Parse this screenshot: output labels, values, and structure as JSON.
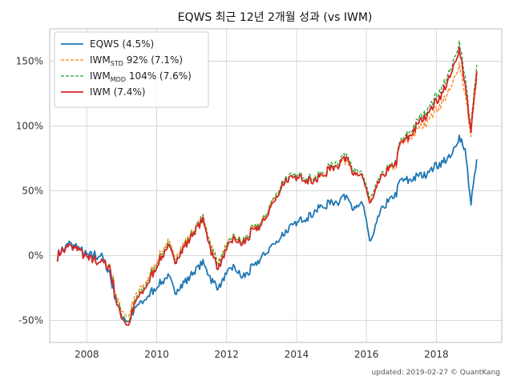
{
  "chart_data": {
    "type": "line",
    "title": "EQWS 최근 12년 2개월 성과 (vs IWM)",
    "xlabel": "",
    "ylabel": "",
    "x_ticks": [
      "2008",
      "2010",
      "2012",
      "2014",
      "2016",
      "2018"
    ],
    "y_ticks": [
      "-50%",
      "0%",
      "50%",
      "100%",
      "150%"
    ],
    "xlim": [
      "2006-12-10",
      "2019-11-15"
    ],
    "ylim": [
      -67,
      175
    ],
    "grid": true,
    "legend_position": "top-left",
    "series": [
      {
        "name": "EQWS (4.5%)",
        "color": "#1f77b4",
        "style": "solid",
        "x": [
          "2007-03-01",
          "2007-07-01",
          "2007-10-01",
          "2008-01-01",
          "2008-06-01",
          "2008-09-01",
          "2008-11-20",
          "2009-03-09",
          "2009-06-01",
          "2009-10-01",
          "2010-04-23",
          "2010-07-02",
          "2010-10-01",
          "2011-04-29",
          "2011-08-08",
          "2011-10-03",
          "2012-03-01",
          "2012-06-01",
          "2012-10-01",
          "2013-01-02",
          "2013-05-01",
          "2013-09-01",
          "2014-03-01",
          "2014-08-01",
          "2014-12-01",
          "2015-03-01",
          "2015-06-23",
          "2015-08-24",
          "2015-12-01",
          "2016-02-11",
          "2016-06-01",
          "2016-11-08",
          "2016-12-15",
          "2017-04-01",
          "2017-08-01",
          "2017-12-01",
          "2018-03-01",
          "2018-06-01",
          "2018-08-31",
          "2018-10-29",
          "2018-12-24",
          "2019-02-27"
        ],
        "values": [
          0,
          10,
          6,
          0,
          0,
          -15,
          -40,
          -52,
          -40,
          -32,
          -15,
          -28,
          -22,
          -5,
          -20,
          -25,
          -8,
          -17,
          -10,
          -2,
          8,
          18,
          28,
          35,
          40,
          42,
          48,
          35,
          40,
          8,
          35,
          48,
          58,
          58,
          62,
          68,
          72,
          75,
          92,
          82,
          40,
          72
        ]
      },
      {
        "name": "IWMSTD 92% (7.1%)",
        "color": "#ff7f0e",
        "style": "dashed",
        "x": [
          "2007-03-01",
          "2007-07-01",
          "2007-10-01",
          "2008-01-01",
          "2008-06-01",
          "2008-09-01",
          "2008-11-20",
          "2009-03-09",
          "2009-06-01",
          "2009-10-01",
          "2010-04-23",
          "2010-07-02",
          "2010-10-01",
          "2011-04-29",
          "2011-08-08",
          "2011-10-03",
          "2012-03-01",
          "2012-06-01",
          "2012-10-01",
          "2013-01-02",
          "2013-05-01",
          "2013-09-01",
          "2014-03-01",
          "2014-08-01",
          "2014-12-01",
          "2015-03-01",
          "2015-06-23",
          "2015-08-24",
          "2015-12-01",
          "2016-02-11",
          "2016-06-01",
          "2016-11-08",
          "2016-12-15",
          "2017-04-01",
          "2017-08-01",
          "2017-12-01",
          "2018-03-01",
          "2018-06-01",
          "2018-08-31",
          "2018-10-29",
          "2018-12-24",
          "2019-02-27"
        ],
        "values": [
          0,
          8,
          5,
          -2,
          -5,
          -8,
          -35,
          -48,
          -30,
          -18,
          12,
          -2,
          8,
          30,
          5,
          -5,
          15,
          10,
          20,
          25,
          42,
          58,
          60,
          58,
          65,
          70,
          75,
          62,
          60,
          40,
          60,
          70,
          85,
          90,
          100,
          110,
          118,
          128,
          148,
          125,
          92,
          135
        ]
      },
      {
        "name": "IWMMDD 104% (7.6%)",
        "color": "#2ca02c",
        "style": "dashed",
        "x": [
          "2007-03-01",
          "2007-07-01",
          "2007-10-01",
          "2008-01-01",
          "2008-06-01",
          "2008-09-01",
          "2008-11-20",
          "2009-03-09",
          "2009-06-01",
          "2009-10-01",
          "2010-04-23",
          "2010-07-02",
          "2010-10-01",
          "2011-04-29",
          "2011-08-08",
          "2011-10-03",
          "2012-03-01",
          "2012-06-01",
          "2012-10-01",
          "2013-01-02",
          "2013-05-01",
          "2013-09-01",
          "2014-03-01",
          "2014-08-01",
          "2014-12-01",
          "2015-03-01",
          "2015-06-23",
          "2015-08-24",
          "2015-12-01",
          "2016-02-11",
          "2016-06-01",
          "2016-11-08",
          "2016-12-15",
          "2017-04-01",
          "2017-08-01",
          "2017-12-01",
          "2018-03-01",
          "2018-06-01",
          "2018-08-31",
          "2018-10-29",
          "2018-12-24",
          "2019-02-27"
        ],
        "values": [
          0,
          8,
          5,
          -2,
          -5,
          -9,
          -37,
          -52,
          -33,
          -20,
          10,
          -4,
          6,
          30,
          3,
          -7,
          15,
          10,
          20,
          25,
          43,
          60,
          62,
          60,
          68,
          73,
          80,
          65,
          62,
          42,
          62,
          73,
          88,
          95,
          108,
          120,
          130,
          142,
          165,
          138,
          98,
          145
        ]
      },
      {
        "name": "IWM (7.4%)",
        "color": "#d62728",
        "style": "solid",
        "x": [
          "2007-03-01",
          "2007-07-01",
          "2007-10-01",
          "2008-01-01",
          "2008-06-01",
          "2008-09-01",
          "2008-11-20",
          "2009-03-09",
          "2009-06-01",
          "2009-10-01",
          "2010-04-23",
          "2010-07-02",
          "2010-10-01",
          "2011-04-29",
          "2011-08-08",
          "2011-10-03",
          "2012-03-01",
          "2012-06-01",
          "2012-10-01",
          "2013-01-02",
          "2013-05-01",
          "2013-09-01",
          "2014-03-01",
          "2014-08-01",
          "2014-12-01",
          "2015-03-01",
          "2015-06-23",
          "2015-08-24",
          "2015-12-01",
          "2016-02-11",
          "2016-06-01",
          "2016-11-08",
          "2016-12-15",
          "2017-04-01",
          "2017-08-01",
          "2017-12-01",
          "2018-03-01",
          "2018-06-01",
          "2018-08-31",
          "2018-10-29",
          "2018-12-24",
          "2019-02-27"
        ],
        "values": [
          0,
          8,
          5,
          -2,
          -5,
          -10,
          -40,
          -55,
          -35,
          -22,
          8,
          -5,
          5,
          28,
          0,
          -10,
          13,
          8,
          18,
          23,
          40,
          58,
          60,
          58,
          66,
          70,
          78,
          62,
          60,
          38,
          60,
          72,
          86,
          92,
          105,
          116,
          125,
          138,
          160,
          132,
          95,
          140
        ]
      }
    ],
    "legend": [
      {
        "base": "EQWS",
        "sub": "",
        "rest": " (4.5%)",
        "color": "#1f77b4",
        "style": "solid"
      },
      {
        "base": "IWM",
        "sub": "STD",
        "rest": " 92% (7.1%)",
        "color": "#ff7f0e",
        "style": "dashed"
      },
      {
        "base": "IWM",
        "sub": "MDD",
        "rest": " 104% (7.6%)",
        "color": "#2ca02c",
        "style": "dashed"
      },
      {
        "base": "IWM",
        "sub": "",
        "rest": " (7.4%)",
        "color": "#d62728",
        "style": "solid"
      }
    ],
    "footer": "updated: 2019-02-27 © QuantKang"
  }
}
